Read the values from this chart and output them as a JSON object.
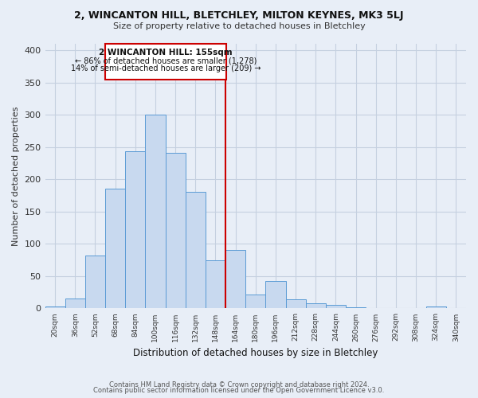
{
  "title1": "2, WINCANTON HILL, BLETCHLEY, MILTON KEYNES, MK3 5LJ",
  "title2": "Size of property relative to detached houses in Bletchley",
  "xlabel": "Distribution of detached houses by size in Bletchley",
  "ylabel": "Number of detached properties",
  "footer1": "Contains HM Land Registry data © Crown copyright and database right 2024.",
  "footer2": "Contains public sector information licensed under the Open Government Licence v3.0.",
  "bin_labels": [
    "20sqm",
    "36sqm",
    "52sqm",
    "68sqm",
    "84sqm",
    "100sqm",
    "116sqm",
    "132sqm",
    "148sqm",
    "164sqm",
    "180sqm",
    "196sqm",
    "212sqm",
    "228sqm",
    "244sqm",
    "260sqm",
    "276sqm",
    "292sqm",
    "308sqm",
    "324sqm",
    "340sqm"
  ],
  "bar_values": [
    3,
    15,
    82,
    186,
    244,
    300,
    241,
    180,
    75,
    90,
    21,
    42,
    14,
    8,
    5,
    2,
    1,
    0,
    0,
    3,
    0
  ],
  "bar_color": "#c8d9ef",
  "bar_edge_color": "#5b9bd5",
  "ylim": [
    0,
    410
  ],
  "yticks": [
    0,
    50,
    100,
    150,
    200,
    250,
    300,
    350,
    400
  ],
  "vline_color": "#cc0000",
  "annotation_title": "2 WINCANTON HILL: 155sqm",
  "annotation_line1": "← 86% of detached houses are smaller (1,278)",
  "annotation_line2": "14% of semi-detached houses are larger (209) →",
  "annotation_box_color": "#ffffff",
  "annotation_box_edge": "#cc0000",
  "bg_color": "#e8eef7",
  "grid_color": "#c5d0e0"
}
